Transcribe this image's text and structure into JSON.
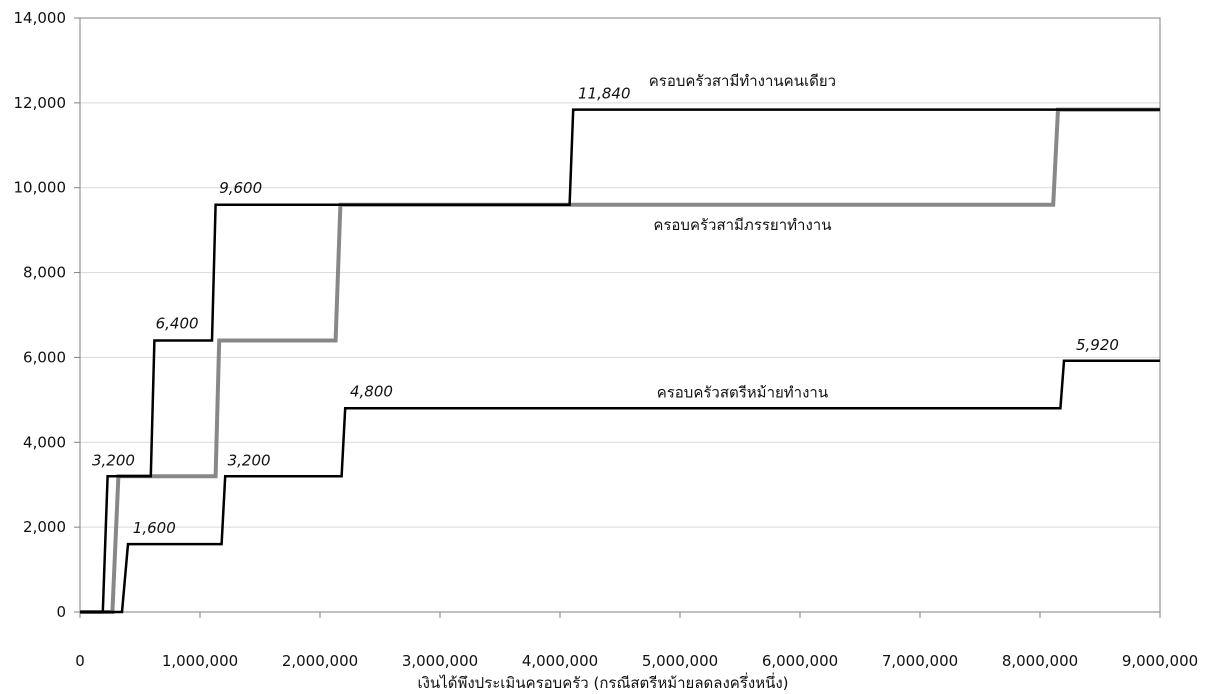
{
  "chart_data": {
    "type": "line",
    "title": "",
    "xlabel": "เงินได้พึงประเมินครอบครัว (กรณีสตรีหม้ายลดลงครึ่งหนึ่ง)",
    "ylabel": "",
    "xlim": [
      0,
      9000000
    ],
    "ylim": [
      0,
      14000
    ],
    "x_ticks": [
      0,
      1000000,
      2000000,
      3000000,
      4000000,
      5000000,
      6000000,
      7000000,
      8000000,
      9000000
    ],
    "x_tick_labels": [
      "0",
      "1,000,000",
      "2,000,000",
      "3,000,000",
      "4,000,000",
      "5,000,000",
      "6,000,000",
      "7,000,000",
      "8,000,000",
      "9,000,000"
    ],
    "y_ticks": [
      0,
      2000,
      4000,
      6000,
      8000,
      10000,
      12000,
      14000
    ],
    "y_tick_labels": [
      "0",
      "2,000",
      "4,000",
      "6,000",
      "8,000",
      "10,000",
      "12,000",
      "14,000"
    ],
    "grid": true,
    "legend": "none",
    "series": [
      {
        "name": "ครอบครัวสามีทำงานคนเดียว",
        "color": "#000000",
        "points": [
          [
            0,
            0
          ],
          [
            190000,
            0
          ],
          [
            230000,
            3200
          ],
          [
            590000,
            3200
          ],
          [
            620000,
            6400
          ],
          [
            1100000,
            6400
          ],
          [
            1130000,
            9600
          ],
          [
            4080000,
            9600
          ],
          [
            4110000,
            11840
          ],
          [
            9000000,
            11840
          ]
        ]
      },
      {
        "name": "ครอบครัวสามีภรรยาทำงาน",
        "color": "#888888",
        "points": [
          [
            0,
            0
          ],
          [
            270000,
            0
          ],
          [
            320000,
            3200
          ],
          [
            1130000,
            3200
          ],
          [
            1160000,
            6400
          ],
          [
            2130000,
            6400
          ],
          [
            2170000,
            9600
          ],
          [
            8110000,
            9600
          ],
          [
            8150000,
            11840
          ],
          [
            9000000,
            11840
          ]
        ]
      },
      {
        "name": "ครอบครัวสตรีหม้ายทำงาน",
        "color": "#000000",
        "points": [
          [
            0,
            0
          ],
          [
            350000,
            0
          ],
          [
            400000,
            1600
          ],
          [
            1180000,
            1600
          ],
          [
            1210000,
            3200
          ],
          [
            2180000,
            3200
          ],
          [
            2210000,
            4800
          ],
          [
            8170000,
            4800
          ],
          [
            8200000,
            5920
          ],
          [
            9000000,
            5920
          ]
        ]
      }
    ],
    "annotations": [
      {
        "text": "11,840",
        "x": 4150000,
        "y": 12100
      },
      {
        "text": "9,600",
        "x": 1160000,
        "y": 9880
      },
      {
        "text": "6,400",
        "x": 630000,
        "y": 6680
      },
      {
        "text": "3,200",
        "x": 100000,
        "y": 3450
      },
      {
        "text": "1,600",
        "x": 440000,
        "y": 1860
      },
      {
        "text": "3,200",
        "x": 1230000,
        "y": 3450
      },
      {
        "text": "4,800",
        "x": 2250000,
        "y": 5080
      },
      {
        "text": "5,920",
        "x": 8300000,
        "y": 6170
      }
    ],
    "series_labels": [
      {
        "text": "ครอบครัวสามีทำงานคนเดียว",
        "x": 5520000,
        "y": 12400
      },
      {
        "text": "ครอบครัวสามีภรรยาทำงาน",
        "x": 5520000,
        "y": 9000
      },
      {
        "text": "ครอบครัวสตรีหม้ายทำงาน",
        "x": 5520000,
        "y": 5050
      }
    ]
  }
}
